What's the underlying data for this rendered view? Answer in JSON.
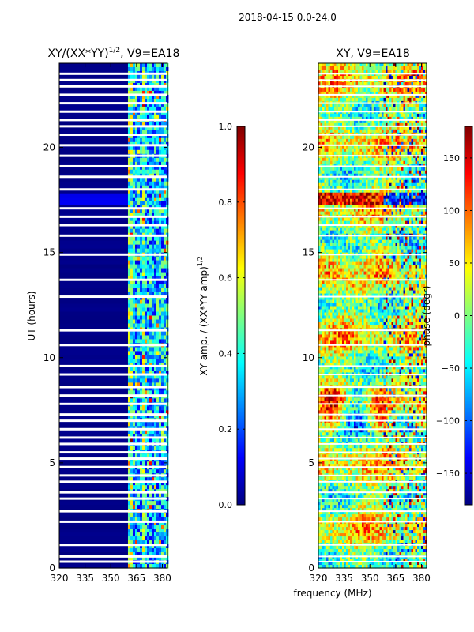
{
  "figure": {
    "suptitle": "2018-04-15 0.0-24.0",
    "shared_xlabel": "frequency (MHz)"
  },
  "chart_data": [
    {
      "type": "heatmap",
      "title_main": "XY/(XX*YY)",
      "title_exp": "1/2",
      "title_tail": ", V9=EA18",
      "ylabel": "UT (hours)",
      "xlim": [
        320,
        383
      ],
      "ylim": [
        0,
        24
      ],
      "x_ticks": [
        320,
        335,
        350,
        365,
        380
      ],
      "y_ticks": [
        0,
        5,
        10,
        15,
        20
      ],
      "colormap": "jet",
      "colorbar": {
        "label_main": "XY amp. / (XX*YY amp)",
        "label_exp": "1/2",
        "range": [
          0.0,
          1.0
        ],
        "ticks": [
          "0.0",
          "0.2",
          "0.4",
          "0.6",
          "0.8",
          "1.0"
        ]
      },
      "flagged_band_mhz": [
        320,
        360
      ],
      "active_band_mhz": [
        360,
        383
      ],
      "flagged_rows_ut": [
        0.3,
        0.55,
        1.1,
        2.2,
        2.7,
        3.3,
        3.6,
        4.1,
        4.4,
        4.8,
        5.2,
        5.5,
        5.9,
        6.2,
        6.6,
        7.0,
        7.3,
        7.8,
        8.2,
        8.6,
        9.2,
        9.6,
        10.6,
        11.3,
        12.9,
        13.7,
        14.9,
        15.8,
        16.3,
        16.7,
        17.1,
        18.0,
        18.6,
        19.1,
        19.6,
        20.1,
        20.6,
        21.0,
        21.3,
        21.7,
        22.1,
        22.5,
        22.9,
        23.2,
        23.5
      ]
    },
    {
      "type": "heatmap",
      "title": "XY, V9=EA18",
      "xlim": [
        320,
        383
      ],
      "ylim": [
        0,
        24
      ],
      "x_ticks": [
        320,
        335,
        350,
        365,
        380
      ],
      "y_ticks": [
        0,
        5,
        10,
        15,
        20
      ],
      "colormap": "jet",
      "colorbar": {
        "label": "phase (degr)",
        "range": [
          -180,
          180
        ],
        "ticks": [
          "−150",
          "−100",
          "−50",
          "0",
          "50",
          "100",
          "150"
        ]
      },
      "flagged_rows_ut": [
        0.3,
        0.55,
        1.1,
        2.2,
        2.7,
        3.3,
        3.6,
        4.1,
        4.4,
        4.8,
        5.2,
        5.5,
        5.9,
        6.2,
        6.6,
        7.0,
        7.3,
        7.8,
        8.2,
        8.6,
        9.2,
        9.6,
        10.6,
        11.3,
        12.9,
        13.7,
        14.9,
        15.8,
        16.3,
        16.7,
        17.1,
        18.0,
        18.6,
        19.1,
        19.6,
        20.1,
        20.6,
        21.0,
        21.3,
        21.7,
        22.1,
        22.5,
        22.9,
        23.2,
        23.5
      ]
    }
  ]
}
